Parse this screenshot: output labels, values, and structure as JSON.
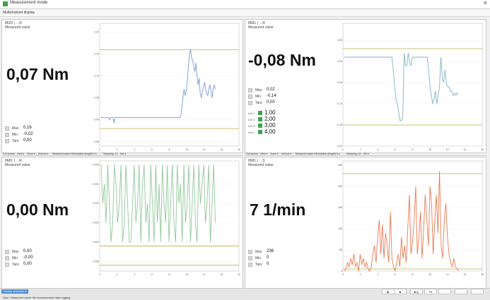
{
  "window": {
    "title": "Measurement mode",
    "help": "⚙"
  },
  "menu": {
    "item": "Multichannel display"
  },
  "panels": [
    {
      "channel": "8625 | →R",
      "subtitle": "Measured value",
      "value": "0,07 Nm",
      "stats": [
        {
          "name": "Max",
          "value": "0,16"
        },
        {
          "name": "Min",
          "value": "-0,02"
        },
        {
          "name": "Tare",
          "value": "0,00"
        }
      ]
    },
    {
      "channel": "8681 | →R",
      "subtitle": "Measured value",
      "value": "-0,08 Nm",
      "stats": [
        {
          "name": "Max",
          "value": "0,02"
        },
        {
          "name": "Min",
          "value": "-0,14"
        },
        {
          "name": "Tare",
          "value": "0,00"
        }
      ],
      "limits": [
        {
          "name": "Lim 1",
          "value": "1,00"
        },
        {
          "name": "Lim 2",
          "value": "2,00"
        },
        {
          "name": "Lim 3",
          "value": "3,00"
        },
        {
          "name": "Lim 4",
          "value": "4,00"
        }
      ]
    },
    {
      "channel": "8681 | →R",
      "subtitle": "Measured value",
      "value": "0,00 Nm",
      "stats": [
        {
          "name": "Max",
          "value": "0,00"
        },
        {
          "name": "Min",
          "value": "-0,00"
        },
        {
          "name": "Tare",
          "value": "0,00"
        }
      ]
    },
    {
      "channel": "8681 | →S",
      "subtitle": "Measured value",
      "value": "7 1/min",
      "stats": [
        {
          "name": "Max",
          "value": "236"
        },
        {
          "name": "Min",
          "value": "0"
        },
        {
          "name": "Tare",
          "value": "0"
        }
      ]
    }
  ],
  "toolbars": [
    [
      "Full screen",
      "View ▾",
      "Zoom ▾",
      "Actions ▾",
      "Measured value ▾",
      "Simulation (length):",
      "3 s",
      "Sampling: 10",
      "Set ▾"
    ],
    [
      "Full screen",
      "View ▾",
      "Zoom ▾",
      "Actions ▾",
      "Measured value ▾",
      "Simulation (length):",
      "3 s",
      "Sampling: 10",
      "Set ▾"
    ]
  ],
  "status": {
    "device_button": "Device selection ▾",
    "text": "Note: 'Measured value' file measurement data logging",
    "controls": [
      "▶",
      "■",
      "■ |||",
      "F6",
      "",
      "",
      ""
    ]
  },
  "colors": {
    "blue": "#7a97d6",
    "cyan": "#7fb3c4",
    "green": "#93c79b",
    "orange": "#e87a52",
    "limit": "#b5b046"
  },
  "chart_data": [
    {
      "type": "line",
      "series": [
        {
          "values": [
            0.005,
            0.005,
            0.005,
            0.005,
            0.005,
            0.005,
            0.005,
            0.005,
            0.0,
            0.005,
            0.005,
            0.005,
            -0.008,
            0.005,
            0.005,
            0.005,
            0.005,
            0.005,
            0.005,
            0.005,
            0.005,
            0.005,
            0.005,
            0.005,
            0.005,
            0.005,
            0.005,
            0.005,
            0.005,
            0.005,
            0.005,
            0.005,
            0.005,
            0.005,
            0.005,
            0.005,
            0.005,
            0.005,
            0.005,
            0.005,
            0.005,
            0.005,
            0.005,
            0.005,
            0.005,
            0.005,
            0.005,
            0.005,
            0.005,
            0.005,
            0.005,
            0.005,
            0.005,
            0.005,
            0.005,
            0.005,
            0.005,
            0.005,
            0.005,
            0.005,
            0.005,
            0.005,
            0.005,
            0.005,
            0.005,
            0.005,
            0.005,
            0.005,
            0.005,
            0.005,
            0.005,
            0.005,
            0.005,
            0.005,
            0.01,
            0.03,
            0.05,
            0.07,
            0.055,
            0.065,
            0.09,
            0.12,
            0.15,
            0.16,
            0.14,
            0.135,
            0.12,
            0.11,
            0.13,
            0.1,
            0.08,
            0.095,
            0.06,
            0.05,
            0.065,
            0.075,
            0.085,
            0.07,
            0.06,
            0.055,
            0.07,
            0.08,
            0.065,
            0.05,
            0.07,
            0.08,
            0.07
          ],
          "color": "#7a97d6"
        }
      ],
      "x_range": [
        0,
        16
      ],
      "ylim": [
        -0.06,
        0.22
      ],
      "limits": [
        0.16,
        -0.02
      ],
      "yticks": [
        "0.20",
        "0.15",
        "0.10",
        "0.05",
        "0.00",
        "-0.05"
      ],
      "xticks": [
        "0",
        "2",
        "4",
        "6",
        "8",
        "10",
        "12",
        "14",
        "16"
      ]
    },
    {
      "type": "line",
      "series": [
        {
          "values": [
            0.01,
            0.01,
            0.01,
            0.01,
            0.01,
            0.01,
            0.01,
            0.01,
            0.01,
            0.01,
            0.01,
            0.01,
            0.01,
            0.01,
            0.01,
            0.01,
            0.01,
            0.01,
            0.01,
            0.01,
            0.01,
            0.01,
            0.01,
            0.01,
            0.01,
            0.01,
            0.01,
            0.01,
            0.01,
            0.01,
            0.01,
            0.01,
            0.01,
            0.01,
            0.01,
            0.01,
            -0.02,
            -0.06,
            -0.09,
            -0.1,
            -0.12,
            -0.14,
            -0.14,
            -0.13,
            0.02,
            -0.01,
            -0.01,
            0.02,
            0.0,
            -0.01,
            0.01,
            0.01,
            0.01,
            0.01,
            0.01,
            0.01,
            0.01,
            0.01,
            0.01,
            0.01,
            0.01,
            0.01,
            -0.02,
            -0.06,
            -0.08,
            -0.1,
            -0.09,
            -0.07,
            -0.1,
            -0.08,
            -0.06,
            0.01,
            -0.04,
            -0.05,
            -0.02,
            -0.05,
            -0.06,
            -0.06,
            -0.07,
            -0.07,
            -0.08,
            -0.075,
            -0.08,
            -0.075,
            -0.075
          ],
          "color": "#7fb3c4"
        }
      ],
      "x_range": [
        0,
        16
      ],
      "ylim": [
        -0.2,
        0.09
      ],
      "limits": [
        0.03,
        -0.15
      ],
      "yticks": [
        "0.05",
        "0.00",
        "-0.05",
        "-0.10",
        "-0.15",
        "-0.20"
      ],
      "xticks": [
        "0",
        "2",
        "4",
        "6",
        "8",
        "10",
        "12",
        "14",
        "16"
      ]
    },
    {
      "type": "line",
      "series": [
        {
          "values": [
            0,
            -0.002,
            -0.001,
            -0.003,
            0,
            -0.002,
            -0.004,
            -0.003,
            0,
            -0.001,
            -0.003,
            -0.002,
            0,
            -0.004,
            -0.003,
            0,
            -0.002,
            -0.004,
            -0.004,
            -0.002,
            0,
            -0.003,
            -0.002,
            0,
            -0.004,
            -0.001,
            0,
            -0.003,
            -0.002,
            -0.004,
            0,
            -0.002,
            -0.004,
            0,
            -0.003,
            -0.001,
            -0.004,
            0,
            -0.002,
            -0.003,
            0,
            -0.004,
            -0.002,
            0,
            -0.003,
            -0.004,
            0,
            -0.002,
            -0.001,
            -0.004,
            0,
            -0.003,
            -0.002,
            0,
            -0.004,
            -0.002,
            0,
            -0.003,
            -0.004,
            0,
            -0.002,
            -0.001,
            0,
            -0.003,
            -0.002,
            0,
            -0.004,
            -0.002,
            0,
            -0.003
          ],
          "color": "#93c79b"
        }
      ],
      "x_range": [
        0,
        16
      ],
      "ylim": [
        -0.0055,
        0.0002
      ],
      "limits": [
        -0.0052,
        -0.0042
      ],
      "yticks": [
        "0.000",
        "-0.001",
        "-0.002",
        "-0.003",
        "-0.004",
        "-0.005"
      ],
      "xticks": [
        "0",
        "2",
        "4",
        "6",
        "8",
        "10",
        "12",
        "14",
        "16"
      ]
    },
    {
      "type": "line",
      "series": [
        {
          "values": [
            0,
            5,
            20,
            10,
            30,
            15,
            40,
            10,
            20,
            0,
            40,
            15,
            30,
            10,
            20,
            5,
            0,
            10,
            40,
            60,
            20,
            80,
            120,
            40,
            110,
            30,
            90,
            60,
            20,
            140,
            30,
            10,
            0,
            20,
            40,
            10,
            80,
            30,
            60,
            20,
            100,
            180,
            40,
            70,
            120,
            200,
            40,
            80,
            140,
            30,
            100,
            180,
            120,
            60,
            200,
            160,
            40,
            120,
            180,
            90,
            236,
            60,
            30,
            120,
            160,
            80,
            40,
            20,
            10,
            30,
            10,
            5,
            0
          ],
          "color": "#e87a52"
        }
      ],
      "x_range": [
        0,
        16
      ],
      "ylim": [
        0,
        260
      ],
      "limits": [
        230,
        5
      ],
      "yticks": [
        "250",
        "200",
        "150",
        "100",
        "50",
        "0"
      ],
      "xticks": [
        "0",
        "2",
        "4",
        "6",
        "8",
        "10",
        "12",
        "14",
        "16"
      ]
    }
  ]
}
